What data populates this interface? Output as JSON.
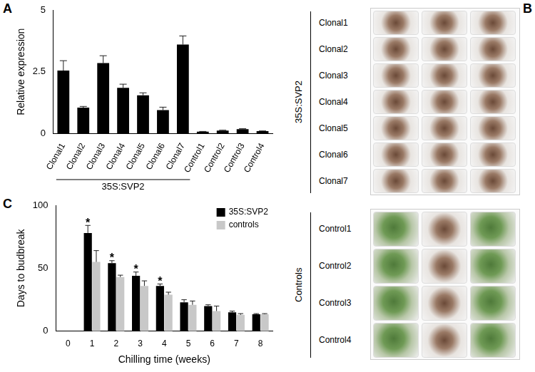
{
  "chart_data": [
    {
      "panel": "A",
      "type": "bar",
      "y_label": "Relative expression",
      "categories": [
        "Clonal1",
        "Clonal2",
        "Clonal3",
        "Clonal4",
        "Clonal5",
        "Clonal6",
        "Clonal7",
        "Control1",
        "Control2",
        "Control3",
        "Control4"
      ],
      "values": [
        2.55,
        1.05,
        2.85,
        1.85,
        1.55,
        0.95,
        3.6,
        0.08,
        0.12,
        0.18,
        0.1
      ],
      "errors": [
        0.4,
        0.05,
        0.3,
        0.15,
        0.1,
        0.12,
        0.35,
        0.01,
        0.02,
        0.02,
        0.01
      ],
      "color": "#000000",
      "ylim": [
        0,
        5
      ],
      "yticks": [
        0,
        2.5,
        5
      ],
      "grid": false,
      "annotations": [
        {
          "text": "35S:SVP2",
          "from": "Clonal1",
          "to": "Clonal7"
        }
      ]
    },
    {
      "panel": "C",
      "type": "bar",
      "x_label": "Chilling time (weeks)",
      "y_label": "Days to budbreak",
      "categories": [
        "0",
        "1",
        "2",
        "3",
        "4",
        "5",
        "6",
        "7",
        "8"
      ],
      "series": [
        {
          "name": "35S:SVP2",
          "color": "#000000",
          "values": [
            null,
            78,
            54,
            44,
            36,
            23,
            20,
            15,
            13.5
          ],
          "errors": [
            null,
            6,
            2,
            3,
            1.5,
            2,
            1,
            1,
            0.5
          ]
        },
        {
          "name": "controls",
          "color": "#c8c8c8",
          "values": [
            null,
            55,
            43,
            36,
            29,
            21,
            16,
            13,
            13.5
          ],
          "errors": [
            null,
            9,
            1.5,
            4,
            2,
            3,
            4,
            1,
            0.5
          ]
        }
      ],
      "ylim": [
        0,
        100
      ],
      "yticks": [
        0,
        50,
        100
      ],
      "grid": false,
      "legend": "top right",
      "annotations": [
        {
          "text": "*",
          "category": "1",
          "series": "35S:SVP2"
        },
        {
          "text": "*",
          "category": "2",
          "series": "35S:SVP2"
        },
        {
          "text": "*",
          "category": "3",
          "series": "35S:SVP2"
        },
        {
          "text": "*",
          "category": "4",
          "series": "35S:SVP2"
        }
      ]
    }
  ],
  "photo": {
    "panel": "B",
    "groups": [
      {
        "label": "35S:SVP2",
        "rows": [
          "Clonal1",
          "Clonal2",
          "Clonal3",
          "Clonal4",
          "Clonal5",
          "Clonal6",
          "Clonal7"
        ]
      },
      {
        "label": "Controls",
        "rows": [
          "Control1",
          "Control2",
          "Control3",
          "Control4"
        ]
      }
    ]
  }
}
